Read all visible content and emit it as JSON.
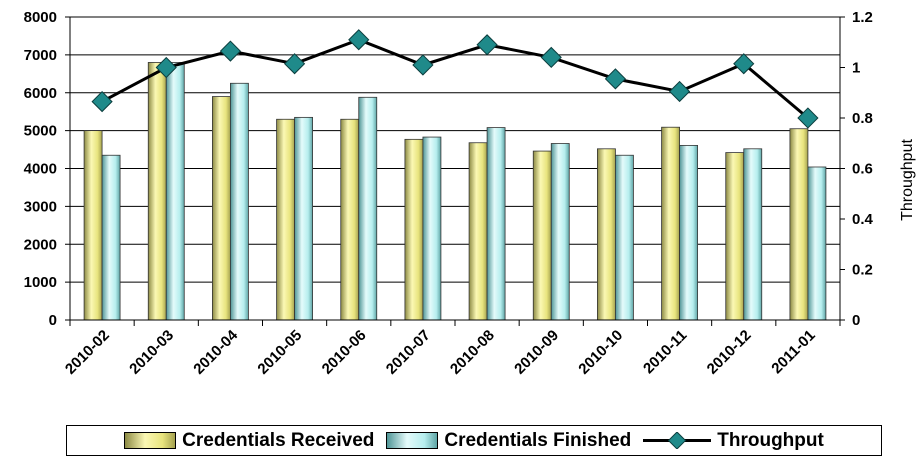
{
  "chart_data": {
    "type": "bar",
    "categories": [
      "2010-02",
      "2010-03",
      "2010-04",
      "2010-05",
      "2010-06",
      "2010-07",
      "2010-08",
      "2010-09",
      "2010-10",
      "2010-11",
      "2010-12",
      "2011-01"
    ],
    "series": [
      {
        "name": "Credentials Received",
        "type": "bar",
        "axis": "left",
        "color": "#eeea8e",
        "values": [
          5000,
          6800,
          5900,
          5300,
          5300,
          4770,
          4680,
          4460,
          4520,
          5090,
          4420,
          5050
        ]
      },
      {
        "name": "Credentials Finished",
        "type": "bar",
        "axis": "left",
        "color": "#c3f1f1",
        "values": [
          4350,
          6800,
          6250,
          5350,
          5880,
          4830,
          5080,
          4660,
          4350,
          4610,
          4520,
          4040
        ]
      },
      {
        "name": "Throughput",
        "type": "line",
        "axis": "right",
        "color": "#1f8a8a",
        "values": [
          0.865,
          1.0,
          1.065,
          1.015,
          1.11,
          1.01,
          1.09,
          1.04,
          0.955,
          0.905,
          1.015,
          0.8
        ]
      }
    ],
    "y_left": {
      "min": 0,
      "max": 8000,
      "step": 1000,
      "ticks": [
        "0",
        "1000",
        "2000",
        "3000",
        "4000",
        "5000",
        "6000",
        "7000",
        "8000"
      ]
    },
    "y_right": {
      "min": 0,
      "max": 1.2,
      "step": 0.2,
      "label": "Throughput",
      "ticks": [
        "0",
        "0.2",
        "0.4",
        "0.6",
        "0.8",
        "1",
        "1.2"
      ]
    },
    "grid": true,
    "legend_position": "bottom"
  }
}
